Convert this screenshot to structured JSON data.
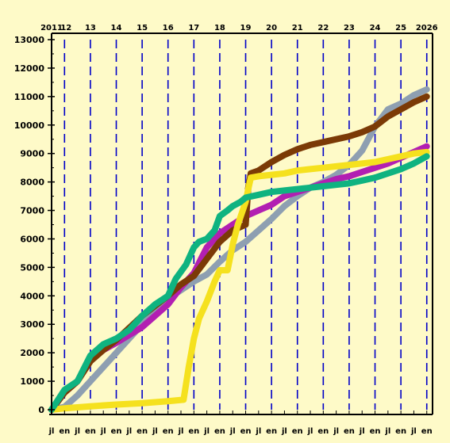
{
  "chart_data": {
    "type": "line",
    "title": "",
    "xlabel": "",
    "ylabel": "",
    "xlim": [
      2011.5,
      2026.1
    ],
    "ylim": [
      0,
      13000
    ],
    "y_ticks": [
      0,
      1000,
      2000,
      3000,
      4000,
      5000,
      6000,
      7000,
      8000,
      9000,
      10000,
      11000,
      12000,
      13000
    ],
    "year_labels": [
      {
        "x": 2011.0,
        "label": "2011"
      },
      {
        "x": 2012.0,
        "label": "12"
      },
      {
        "x": 2013.0,
        "label": "13"
      },
      {
        "x": 2014.0,
        "label": "14"
      },
      {
        "x": 2015.0,
        "label": "15"
      },
      {
        "x": 2016.0,
        "label": "16"
      },
      {
        "x": 2017.0,
        "label": "17"
      },
      {
        "x": 2018.0,
        "label": "18"
      },
      {
        "x": 2019.0,
        "label": "19"
      },
      {
        "x": 2020.0,
        "label": "20"
      },
      {
        "x": 2021.0,
        "label": "21"
      },
      {
        "x": 2022.0,
        "label": "22"
      },
      {
        "x": 2023.0,
        "label": "23"
      },
      {
        "x": 2024.0,
        "label": "24"
      },
      {
        "x": 2025.0,
        "label": "25"
      },
      {
        "x": 2026.0,
        "label": "2026"
      }
    ],
    "month_labels": [
      {
        "x": 2011.5,
        "label": "jl"
      },
      {
        "x": 2012.0,
        "label": "en"
      },
      {
        "x": 2012.5,
        "label": "jl"
      },
      {
        "x": 2013.0,
        "label": "en"
      },
      {
        "x": 2013.5,
        "label": "jl"
      },
      {
        "x": 2014.0,
        "label": "en"
      },
      {
        "x": 2014.5,
        "label": "jl"
      },
      {
        "x": 2015.0,
        "label": "en"
      },
      {
        "x": 2015.5,
        "label": "jl"
      },
      {
        "x": 2016.0,
        "label": "en"
      },
      {
        "x": 2016.5,
        "label": "jl"
      },
      {
        "x": 2017.0,
        "label": "en"
      },
      {
        "x": 2017.5,
        "label": "jl"
      },
      {
        "x": 2018.0,
        "label": "en"
      },
      {
        "x": 2018.5,
        "label": "jl"
      },
      {
        "x": 2019.0,
        "label": "en"
      },
      {
        "x": 2019.5,
        "label": "jl"
      },
      {
        "x": 2020.0,
        "label": "en"
      },
      {
        "x": 2020.5,
        "label": "jl"
      },
      {
        "x": 2021.0,
        "label": "en"
      },
      {
        "x": 2021.5,
        "label": "jl"
      },
      {
        "x": 2022.0,
        "label": "en"
      },
      {
        "x": 2022.5,
        "label": "jl"
      },
      {
        "x": 2023.0,
        "label": "en"
      },
      {
        "x": 2023.5,
        "label": "jl"
      },
      {
        "x": 2024.0,
        "label": "en"
      },
      {
        "x": 2024.5,
        "label": "jl"
      },
      {
        "x": 2025.0,
        "label": "en"
      },
      {
        "x": 2025.5,
        "label": "jl"
      },
      {
        "x": 2026.0,
        "label": "en"
      }
    ],
    "gridlines": {
      "vertical": "dashed",
      "horizontal": "none"
    },
    "colors": {
      "background": "#fefac8",
      "gridline": "#0000c8",
      "axis": "#000000"
    },
    "series": [
      {
        "color": "#8e9fb1",
        "x": [
          2011.5,
          2012.0,
          2012.5,
          2013.0,
          2014.0,
          2015.0,
          2016.0,
          2017.0,
          2017.5,
          2018.0,
          2018.5,
          2019.0,
          2019.5,
          2020.0,
          2020.5,
          2021.0,
          2021.5,
          2022.0,
          2022.5,
          2023.0,
          2023.5,
          2024.0,
          2024.5,
          2025.0,
          2025.5,
          2026.0
        ],
        "y": [
          0,
          100,
          500,
          1000,
          2000,
          3000,
          3900,
          4500,
          4750,
          5200,
          5600,
          5900,
          6300,
          6700,
          7150,
          7500,
          7800,
          8000,
          8250,
          8600,
          9100,
          9950,
          10550,
          10750,
          11050,
          11250
        ]
      },
      {
        "color": "#b21fb2",
        "x": [
          2011.5,
          2012.0,
          2012.5,
          2013.0,
          2013.5,
          2014.0,
          2015.0,
          2016.0,
          2016.5,
          2017.0,
          2017.5,
          2018.0,
          2018.5,
          2019.0,
          2019.5,
          2020.0,
          2020.5,
          2021.0,
          2021.5,
          2022.0,
          2022.5,
          2023.0,
          2023.5,
          2024.0,
          2024.5,
          2025.0,
          2025.5,
          2026.0
        ],
        "y": [
          0,
          600,
          1000,
          1750,
          2100,
          2350,
          2900,
          3700,
          4300,
          4800,
          5700,
          6200,
          6500,
          6800,
          7000,
          7200,
          7500,
          7650,
          7800,
          7950,
          8100,
          8200,
          8350,
          8500,
          8650,
          8850,
          9050,
          9250
        ]
      },
      {
        "color": "#7b3a06",
        "x": [
          2011.5,
          2012.0,
          2012.5,
          2013.0,
          2013.5,
          2014.0,
          2015.0,
          2016.0,
          2016.5,
          2017.0,
          2017.5,
          2018.0,
          2018.5,
          2019.0,
          2019.1,
          2019.2,
          2019.5,
          2020.0,
          2020.5,
          2021.0,
          2021.5,
          2022.0,
          2022.5,
          2023.0,
          2023.5,
          2024.0,
          2024.5,
          2025.0,
          2025.5,
          2026.0
        ],
        "y": [
          0,
          600,
          1000,
          1700,
          2100,
          2450,
          3300,
          4000,
          4400,
          4700,
          5300,
          5900,
          6300,
          6500,
          7800,
          8300,
          8400,
          8700,
          8950,
          9150,
          9300,
          9400,
          9500,
          9600,
          9750,
          9950,
          10300,
          10550,
          10800,
          11000
        ]
      },
      {
        "color": "#f5e11e",
        "x": [
          2011.5,
          2012.0,
          2013.0,
          2014.0,
          2015.0,
          2016.0,
          2016.6,
          2016.8,
          2017.0,
          2017.2,
          2017.5,
          2017.8,
          2018.0,
          2018.3,
          2018.5,
          2018.7,
          2019.0,
          2019.1,
          2019.2,
          2019.5,
          2020.0,
          2020.5,
          2021.0,
          2021.5,
          2022.0,
          2022.5,
          2023.0,
          2023.5,
          2024.0,
          2024.5,
          2025.0,
          2025.5,
          2026.0
        ],
        "y": [
          0,
          50,
          120,
          180,
          230,
          300,
          350,
          1500,
          2500,
          3200,
          3800,
          4500,
          4900,
          4900,
          5800,
          6500,
          7300,
          7750,
          8150,
          8200,
          8250,
          8300,
          8400,
          8450,
          8500,
          8550,
          8600,
          8650,
          8700,
          8800,
          8900,
          9000,
          9050
        ]
      },
      {
        "color": "#0fb380",
        "x": [
          2011.5,
          2012.0,
          2012.5,
          2013.0,
          2013.5,
          2014.0,
          2014.5,
          2015.0,
          2015.5,
          2016.0,
          2016.3,
          2016.7,
          2017.0,
          2017.2,
          2017.5,
          2017.8,
          2018.0,
          2018.3,
          2018.5,
          2018.8,
          2019.0,
          2019.5,
          2020.0,
          2020.5,
          2021.0,
          2021.5,
          2022.0,
          2022.5,
          2023.0,
          2023.5,
          2024.0,
          2024.5,
          2025.0,
          2025.5,
          2026.0
        ],
        "y": [
          0,
          700,
          1000,
          1900,
          2300,
          2500,
          2800,
          3300,
          3700,
          4000,
          4600,
          5100,
          5700,
          5900,
          6000,
          6300,
          6800,
          7000,
          7150,
          7300,
          7450,
          7550,
          7650,
          7700,
          7750,
          7800,
          7850,
          7900,
          7950,
          8050,
          8150,
          8300,
          8450,
          8650,
          8900
        ]
      }
    ]
  }
}
